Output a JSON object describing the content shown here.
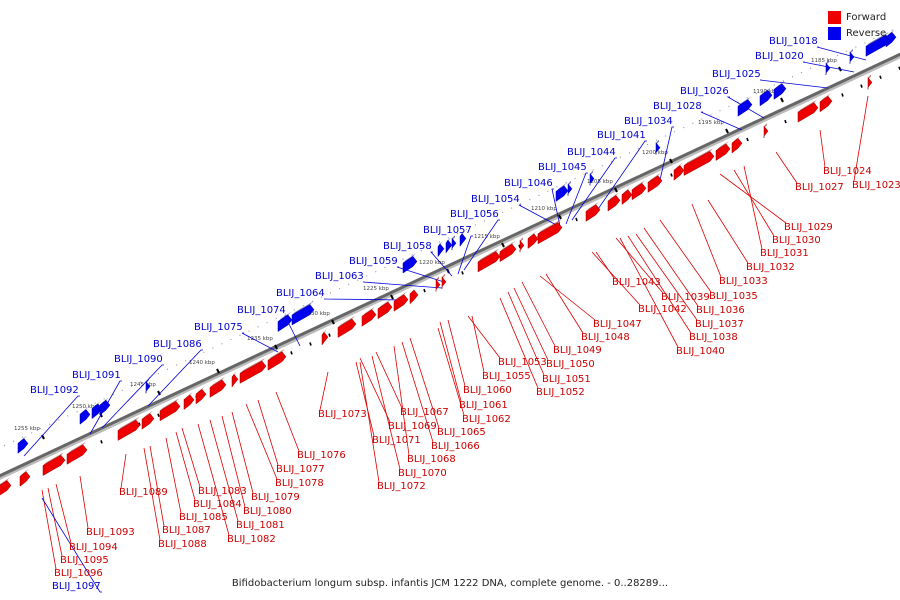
{
  "legend": {
    "forward_label": "Forward",
    "reverse_label": "Reverse",
    "forward_color": "#ee0000",
    "reverse_color": "#0000ee"
  },
  "caption": "Bifidobacterium longum subsp. infantis JCM 1222 DNA, complete genome. - 0..28289...",
  "ticks": [
    "1185 kbp",
    "1190 kbp",
    "1195 kbp",
    "1200 kbp",
    "1205 kbp",
    "1210 kbp",
    "1215 kbp",
    "1220 kbp",
    "1225 kbp",
    "1230 kbp",
    "1235 kbp",
    "1240 kbp",
    "1245 kbp",
    "1250 kbp",
    "1255 kbp"
  ],
  "forward_labels": [
    "BLIJ_1023",
    "BLIJ_1024",
    "BLIJ_1027",
    "BLIJ_1029",
    "BLIJ_1030",
    "BLIJ_1031",
    "BLIJ_1032",
    "BLIJ_1033",
    "BLIJ_1035",
    "BLIJ_1036",
    "BLIJ_1037",
    "BLIJ_1038",
    "BLIJ_1039",
    "BLIJ_1040",
    "BLIJ_1042",
    "BLIJ_1043",
    "BLIJ_1047",
    "BLIJ_1048",
    "BLIJ_1049",
    "BLIJ_1050",
    "BLIJ_1051",
    "BLIJ_1052",
    "BLIJ_1053",
    "BLIJ_1055",
    "BLIJ_1060",
    "BLIJ_1061",
    "BLIJ_1062",
    "BLIJ_1065",
    "BLIJ_1066",
    "BLIJ_1067",
    "BLIJ_1068",
    "BLIJ_1069",
    "BLIJ_1070",
    "BLIJ_1071",
    "BLIJ_1072",
    "BLIJ_1073",
    "BLIJ_1076",
    "BLIJ_1077",
    "BLIJ_1078",
    "BLIJ_1079",
    "BLIJ_1080",
    "BLIJ_1081",
    "BLIJ_1082",
    "BLIJ_1083",
    "BLIJ_1084",
    "BLIJ_1085",
    "BLIJ_1087",
    "BLIJ_1088",
    "BLIJ_1089",
    "BLIJ_1093",
    "BLIJ_1094",
    "BLIJ_1095",
    "BLIJ_1096"
  ],
  "reverse_labels": [
    "BLIJ_1018",
    "BLIJ_1020",
    "BLIJ_1025",
    "BLIJ_1026",
    "BLIJ_1028",
    "BLIJ_1034",
    "BLIJ_1041",
    "BLIJ_1044",
    "BLIJ_1045",
    "BLIJ_1046",
    "BLIJ_1054",
    "BLIJ_1056",
    "BLIJ_1057",
    "BLIJ_1058",
    "BLIJ_1059",
    "BLIJ_1063",
    "BLIJ_1064",
    "BLIJ_1074",
    "BLIJ_1075",
    "BLIJ_1086",
    "BLIJ_1090",
    "BLIJ_1091",
    "BLIJ_1092",
    "BLIJ_1097"
  ]
}
